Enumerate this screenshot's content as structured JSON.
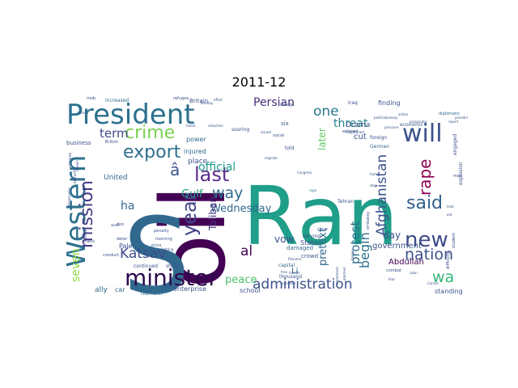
{
  "title": "2011-12",
  "words": [
    {
      "text": "Ran",
      "color": "#1f9e89"
    },
    {
      "text": "oil",
      "color": "#440154"
    },
    {
      "text": "S",
      "color": "#31688e"
    },
    {
      "text": "President",
      "color": "#2c718e"
    },
    {
      "text": "Western",
      "color": "#2d708e"
    },
    {
      "text": "will",
      "color": "#3b528b"
    },
    {
      "text": "minister",
      "color": "#2b0a4e"
    },
    {
      "text": "new",
      "color": "#3e4a89"
    },
    {
      "text": "last",
      "color": "#5b2c8e"
    },
    {
      "text": "year",
      "color": "#414487"
    },
    {
      "text": "export",
      "color": "#2e6f8e"
    },
    {
      "text": "crime",
      "color": "#7ad151"
    },
    {
      "text": "mission",
      "color": "#443a83"
    },
    {
      "text": "said",
      "color": "#34618d"
    },
    {
      "text": "nation",
      "color": "#3b528b"
    },
    {
      "text": "rape",
      "color": "#8e0152"
    },
    {
      "text": "administration",
      "color": "#3b528b"
    },
    {
      "text": "way",
      "color": "#2e6e8e"
    },
    {
      "text": "one",
      "color": "#2a788e"
    },
    {
      "text": "Katsav",
      "color": "#3e4c8a"
    },
    {
      "text": "wa",
      "color": "#35b779"
    },
    {
      "text": "Persian",
      "color": "#472d7b"
    },
    {
      "text": "Afghanistan",
      "color": "#3b528b"
    },
    {
      "text": "seven",
      "color": "#90d743"
    },
    {
      "text": "begin",
      "color": "#2c728e"
    },
    {
      "text": "threat",
      "color": "#26818e"
    },
    {
      "text": "term",
      "color": "#3f4889"
    },
    {
      "text": "peace",
      "color": "#4ac16d"
    },
    {
      "text": "al",
      "color": "#440154"
    },
    {
      "text": "Gulf",
      "color": "#1f9e89"
    },
    {
      "text": "Wednesday",
      "color": "#31688e"
    },
    {
      "text": "protest",
      "color": "#2e6f8e"
    },
    {
      "text": "official",
      "color": "#1f998a"
    },
    {
      "text": "ha",
      "color": "#31688e"
    },
    {
      "text": "day",
      "color": "#3b528b"
    },
    {
      "text": "vow",
      "color": "#3b528b"
    },
    {
      "text": "Taliban",
      "color": "#46337e"
    },
    {
      "text": "â",
      "color": "#3b528b"
    },
    {
      "text": "pretext",
      "color": "#31688e"
    },
    {
      "text": "later",
      "color": "#5ec962"
    },
    {
      "text": "Abdullah",
      "color": "#440154"
    },
    {
      "text": "government",
      "color": "#3b528b"
    },
    {
      "text": "United",
      "color": "#31688e"
    },
    {
      "text": "States",
      "color": "#3b528b"
    },
    {
      "text": "Drama",
      "color": "#3b528b"
    },
    {
      "text": "finding",
      "color": "#3b528b"
    },
    {
      "text": "place",
      "color": "#3b528b"
    },
    {
      "text": "power",
      "color": "#31688e"
    },
    {
      "text": "injured",
      "color": "#31688e"
    },
    {
      "text": "cut",
      "color": "#3b528b"
    },
    {
      "text": "Pale",
      "color": "#3b528b"
    },
    {
      "text": "ally",
      "color": "#31688e"
    },
    {
      "text": "car",
      "color": "#31688e"
    },
    {
      "text": "number",
      "color": "#31688e"
    },
    {
      "text": "enterprise",
      "color": "#3b528b"
    },
    {
      "text": "school",
      "color": "#3b528b"
    },
    {
      "text": "standing",
      "color": "#3b528b"
    },
    {
      "text": "Britain",
      "color": "#3b528b"
    },
    {
      "text": "increased",
      "color": "#31688e"
    },
    {
      "text": "business",
      "color": "#3b528b"
    },
    {
      "text": "crowd",
      "color": "#3b528b"
    },
    {
      "text": "capital",
      "color": "#31688e"
    },
    {
      "text": "economic",
      "color": "#3b528b"
    },
    {
      "text": "engaged",
      "color": "#3b528b"
    },
    {
      "text": "explosion",
      "color": "#3b528b"
    },
    {
      "text": "German",
      "color": "#31688e"
    },
    {
      "text": "foreign",
      "color": "#3b528b"
    },
    {
      "text": "told",
      "color": "#3b528b"
    },
    {
      "text": "six",
      "color": "#3b528b"
    },
    {
      "text": "damaged",
      "color": "#31688e"
    },
    {
      "text": "serving",
      "color": "#3b528b"
    },
    {
      "text": "Tehran",
      "color": "#3b528b"
    },
    {
      "text": "thousand",
      "color": "#3b528b"
    },
    {
      "text": "continued",
      "color": "#3b528b"
    },
    {
      "text": "shrill",
      "color": "#3b528b"
    },
    {
      "text": "conduct",
      "color": "#3b528b"
    },
    {
      "text": "deter",
      "color": "#3b528b"
    },
    {
      "text": "price",
      "color": "#31688e"
    },
    {
      "text": "penalty",
      "color": "#3b528b"
    },
    {
      "text": "morning",
      "color": "#3b528b"
    },
    {
      "text": "soaring",
      "color": "#3b528b"
    },
    {
      "text": "Iraq",
      "color": "#3b528b"
    },
    {
      "text": "refugee",
      "color": "#3b528b"
    },
    {
      "text": "mob",
      "color": "#3b528b"
    },
    {
      "text": "send",
      "color": "#3b528b"
    },
    {
      "text": "Tuesday",
      "color": "#3b528b"
    },
    {
      "text": "combat",
      "color": "#3b528b"
    },
    {
      "text": "entered",
      "color": "#3b528b"
    },
    {
      "text": "embassy",
      "color": "#3b528b"
    },
    {
      "text": "fighting",
      "color": "#3b528b"
    },
    {
      "text": "close",
      "color": "#3b528b"
    },
    {
      "text": "diplomatic",
      "color": "#31688e"
    },
    {
      "text": "charge",
      "color": "#3b528b"
    },
    {
      "text": "effort",
      "color": "#3b528b"
    },
    {
      "text": "social",
      "color": "#3b528b"
    },
    {
      "text": "difficulty",
      "color": "#3b528b"
    },
    {
      "text": "student",
      "color": "#3b528b"
    },
    {
      "text": "ambassador",
      "color": "#3b528b"
    },
    {
      "text": "security",
      "color": "#3b528b"
    },
    {
      "text": "stream",
      "color": "#3b528b"
    },
    {
      "text": "British",
      "color": "#3b528b"
    },
    {
      "text": "don",
      "color": "#3b528b"
    },
    {
      "text": "heightened",
      "color": "#3b528b"
    },
    {
      "text": "withdrew",
      "color": "#3b528b"
    },
    {
      "text": "Panama",
      "color": "#3b528b"
    },
    {
      "text": "failed",
      "color": "#3b528b"
    },
    {
      "text": "plan",
      "color": "#3b528b"
    },
    {
      "text": "Shiite",
      "color": "#3b528b"
    },
    {
      "text": "Arabian",
      "color": "#3b528b"
    },
    {
      "text": "week",
      "color": "#3b528b"
    },
    {
      "text": "reduction",
      "color": "#3b528b"
    },
    {
      "text": "fear",
      "color": "#3b528b"
    },
    {
      "text": "famine",
      "color": "#3b528b"
    },
    {
      "text": "alarmed",
      "color": "#3b528b"
    },
    {
      "text": "pressure",
      "color": "#3b528b"
    },
    {
      "text": "political",
      "color": "#3b528b"
    },
    {
      "text": "prosecutor",
      "color": "#3b528b"
    },
    {
      "text": "Congress",
      "color": "#3b528b"
    },
    {
      "text": "grim",
      "color": "#3b528b"
    },
    {
      "text": "agreement",
      "color": "#3b528b"
    },
    {
      "text": "convoy",
      "color": "#3b528b"
    },
    {
      "text": "stop",
      "color": "#3b528b"
    },
    {
      "text": "report",
      "color": "#3b528b"
    },
    {
      "text": "presidential",
      "color": "#3b528b"
    },
    {
      "text": "action",
      "color": "#3b528b"
    },
    {
      "text": "issued",
      "color": "#3b528b"
    },
    {
      "text": "migrate",
      "color": "#3b528b"
    },
    {
      "text": "achieved",
      "color": "#3b528b"
    },
    {
      "text": "Cancer",
      "color": "#3b528b"
    },
    {
      "text": "handle",
      "color": "#3b528b"
    },
    {
      "text": "man",
      "color": "#3b528b"
    },
    {
      "text": "lead",
      "color": "#3b528b"
    },
    {
      "text": "aid",
      "color": "#3b528b"
    },
    {
      "text": "free",
      "color": "#3b528b"
    },
    {
      "text": "Li",
      "color": "#31688e"
    },
    {
      "text": "home",
      "color": "#3b528b"
    },
    {
      "text": "rape",
      "color": "#31688e"
    }
  ]
}
